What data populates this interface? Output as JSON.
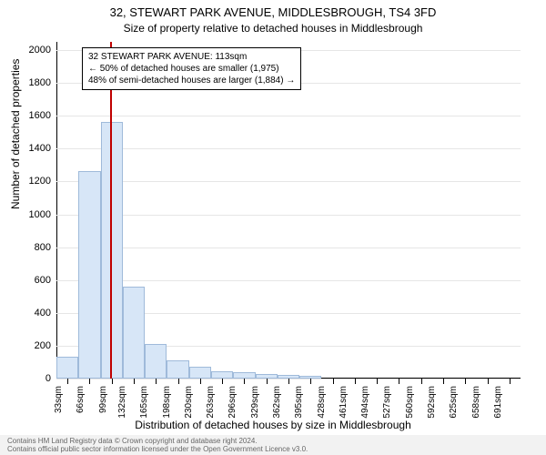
{
  "title": "32, STEWART PARK AVENUE, MIDDLESBROUGH, TS4 3FD",
  "subtitle": "Size of property relative to detached houses in Middlesbrough",
  "ylabel": "Number of detached properties",
  "xlabel": "Distribution of detached houses by size in Middlesbrough",
  "ylim": [
    0,
    2050
  ],
  "yticks": [
    0,
    200,
    400,
    600,
    800,
    1000,
    1200,
    1400,
    1600,
    1800,
    2000
  ],
  "xticks": [
    "33sqm",
    "66sqm",
    "99sqm",
    "132sqm",
    "165sqm",
    "198sqm",
    "230sqm",
    "263sqm",
    "296sqm",
    "329sqm",
    "362sqm",
    "395sqm",
    "428sqm",
    "461sqm",
    "494sqm",
    "527sqm",
    "560sqm",
    "592sqm",
    "625sqm",
    "658sqm",
    "691sqm"
  ],
  "bars": [
    135,
    1265,
    1560,
    560,
    210,
    110,
    70,
    45,
    40,
    30,
    25,
    18,
    0,
    0,
    0,
    0,
    0,
    0,
    0,
    0,
    0
  ],
  "bar_fill": "#d7e6f7",
  "bar_border": "#9fbada",
  "grid_color": "#e6e6e6",
  "ref_value_sqm": 113,
  "ref_line_color": "#c00000",
  "annotation": {
    "line1": "32 STEWART PARK AVENUE: 113sqm",
    "line2": "← 50% of detached houses are smaller (1,975)",
    "line3": "48% of semi-detached houses are larger (1,884) →"
  },
  "footer_line1": "Contains HM Land Registry data © Crown copyright and database right 2024.",
  "footer_line2": "Contains official public sector information licensed under the Open Government Licence v3.0."
}
